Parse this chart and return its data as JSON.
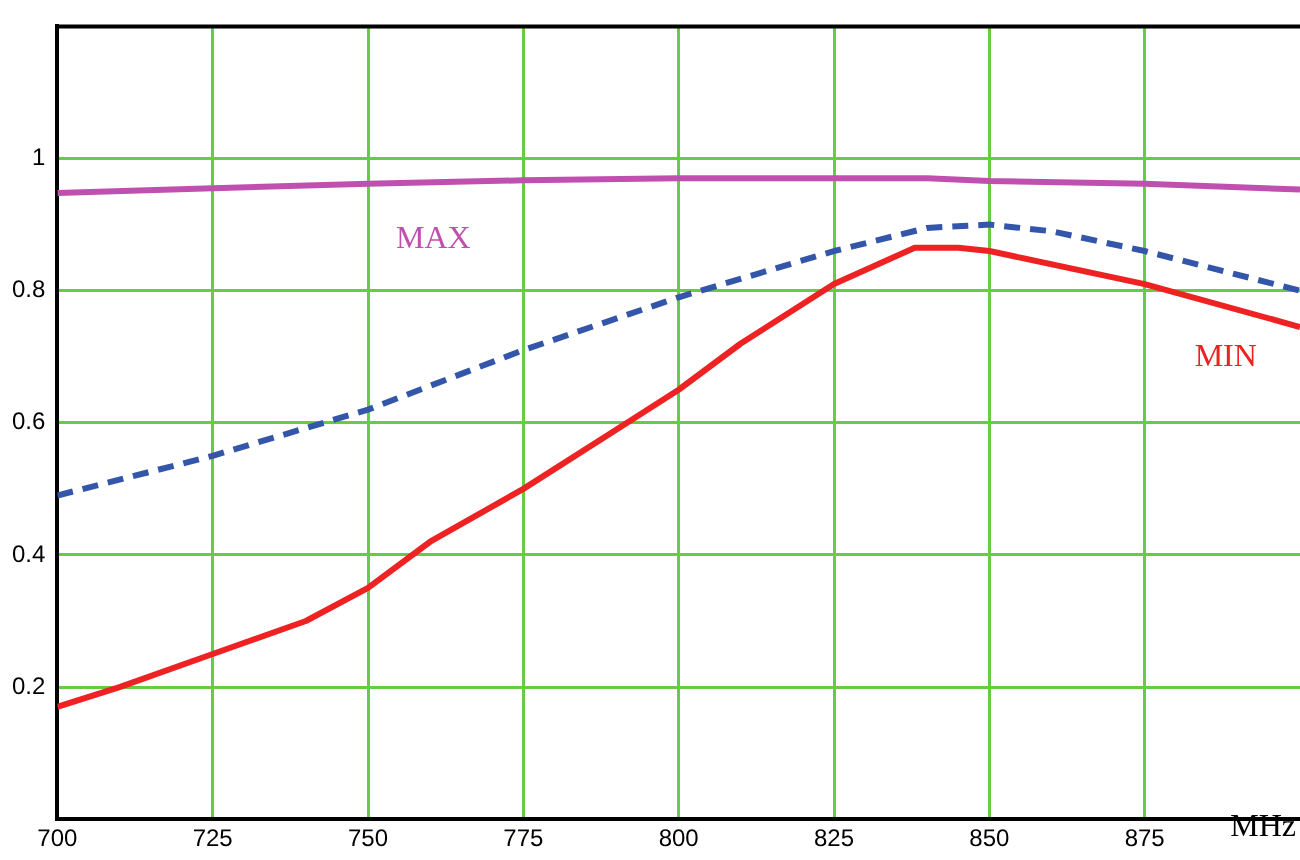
{
  "chart_data": {
    "type": "line",
    "xlabel": "MHz",
    "xlim": [
      700,
      900
    ],
    "xticks": [
      700,
      725,
      750,
      775,
      800,
      825,
      850,
      875
    ],
    "ylim": [
      0,
      1.2
    ],
    "yticks": [
      0.2,
      0.4,
      0.6,
      0.8,
      1
    ],
    "grid": true,
    "legend": false,
    "marker": "none",
    "series": [
      {
        "name": "MAX",
        "color": "#c050b0",
        "line_style": "solid",
        "x": [
          700,
          725,
          750,
          775,
          800,
          825,
          840,
          850,
          875,
          900
        ],
        "values": [
          0.948,
          0.955,
          0.962,
          0.967,
          0.97,
          0.97,
          0.97,
          0.966,
          0.962,
          0.953
        ]
      },
      {
        "color": "#3355aa",
        "line_style": "dashed",
        "x": [
          700,
          725,
          750,
          775,
          800,
          825,
          840,
          850,
          860,
          875,
          900
        ],
        "values": [
          0.49,
          0.55,
          0.62,
          0.71,
          0.79,
          0.86,
          0.895,
          0.9,
          0.89,
          0.86,
          0.8
        ]
      },
      {
        "name": "MIN",
        "color": "#ee2222",
        "line_style": "solid",
        "x": [
          700,
          710,
          725,
          740,
          750,
          760,
          775,
          790,
          800,
          810,
          825,
          838,
          845,
          850,
          875,
          900
        ],
        "values": [
          0.17,
          0.2,
          0.25,
          0.3,
          0.35,
          0.42,
          0.5,
          0.59,
          0.65,
          0.72,
          0.81,
          0.865,
          0.865,
          0.86,
          0.81,
          0.745
        ]
      }
    ]
  }
}
